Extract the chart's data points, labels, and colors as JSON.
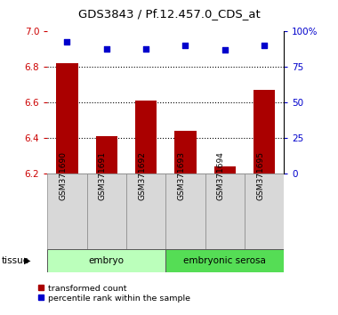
{
  "title": "GDS3843 / Pf.12.457.0_CDS_at",
  "samples": [
    "GSM371690",
    "GSM371691",
    "GSM371692",
    "GSM371693",
    "GSM371694",
    "GSM371695"
  ],
  "transformed_counts": [
    6.82,
    6.41,
    6.61,
    6.44,
    6.24,
    6.67
  ],
  "percentile_ranks": [
    93,
    88,
    88,
    90,
    87,
    90
  ],
  "ylim_left": [
    6.2,
    7.0
  ],
  "ylim_right": [
    0,
    100
  ],
  "yticks_left": [
    6.2,
    6.4,
    6.6,
    6.8,
    7.0
  ],
  "yticks_right": [
    0,
    25,
    50,
    75,
    100
  ],
  "yticklabels_right": [
    "0",
    "25",
    "50",
    "75",
    "100%"
  ],
  "bar_color": "#AA0000",
  "dot_color": "#0000CC",
  "left_tick_color": "#CC0000",
  "right_tick_color": "#0000CC",
  "tissue_groups": [
    {
      "label": "embryo",
      "indices": [
        0,
        1,
        2
      ],
      "color": "#BBFFBB"
    },
    {
      "label": "embryonic serosa",
      "indices": [
        3,
        4,
        5
      ],
      "color": "#55DD55"
    }
  ],
  "tissue_label": "tissue",
  "legend_items": [
    {
      "label": "transformed count",
      "color": "#AA0000",
      "marker": "s"
    },
    {
      "label": "percentile rank within the sample",
      "color": "#0000CC",
      "marker": "s"
    }
  ],
  "grid_color": "#000000",
  "bar_width": 0.55,
  "base_value": 6.2,
  "bg_color": "#ffffff"
}
